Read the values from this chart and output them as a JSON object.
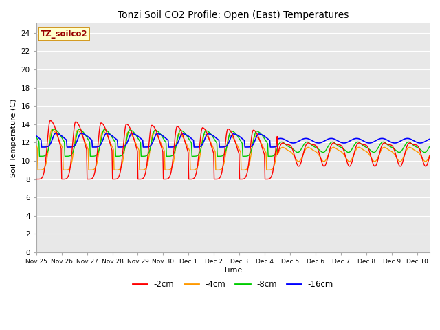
{
  "title": "Tonzi Soil CO2 Profile: Open (East) Temperatures",
  "xlabel": "Time",
  "ylabel": "Soil Temperature (C)",
  "ylim": [
    0,
    25
  ],
  "yticks": [
    0,
    2,
    4,
    6,
    8,
    10,
    12,
    14,
    16,
    18,
    20,
    22,
    24
  ],
  "bg_color": "#ffffff",
  "plot_bg_color": "#e8e8e8",
  "grid_color": "#ffffff",
  "legend_label": "TZ_soilco2",
  "legend_bg": "#ffffcc",
  "legend_border": "#cc8800",
  "series_colors": [
    "#ff0000",
    "#ff9900",
    "#00cc00",
    "#0000ff"
  ],
  "series_labels": [
    "-2cm",
    "-4cm",
    "-8cm",
    "-16cm"
  ],
  "x_tick_labels": [
    "Nov 25",
    "Nov 26",
    "Nov 27",
    "Nov 28",
    "Nov 29",
    "Nov 30",
    "Dec 1",
    "Dec 2",
    "Dec 3",
    "Dec 4",
    "Dec 5",
    "Dec 6",
    "Dec 7",
    "Dec 8",
    "Dec 9",
    "Dec 10"
  ],
  "n_days": 15.5
}
